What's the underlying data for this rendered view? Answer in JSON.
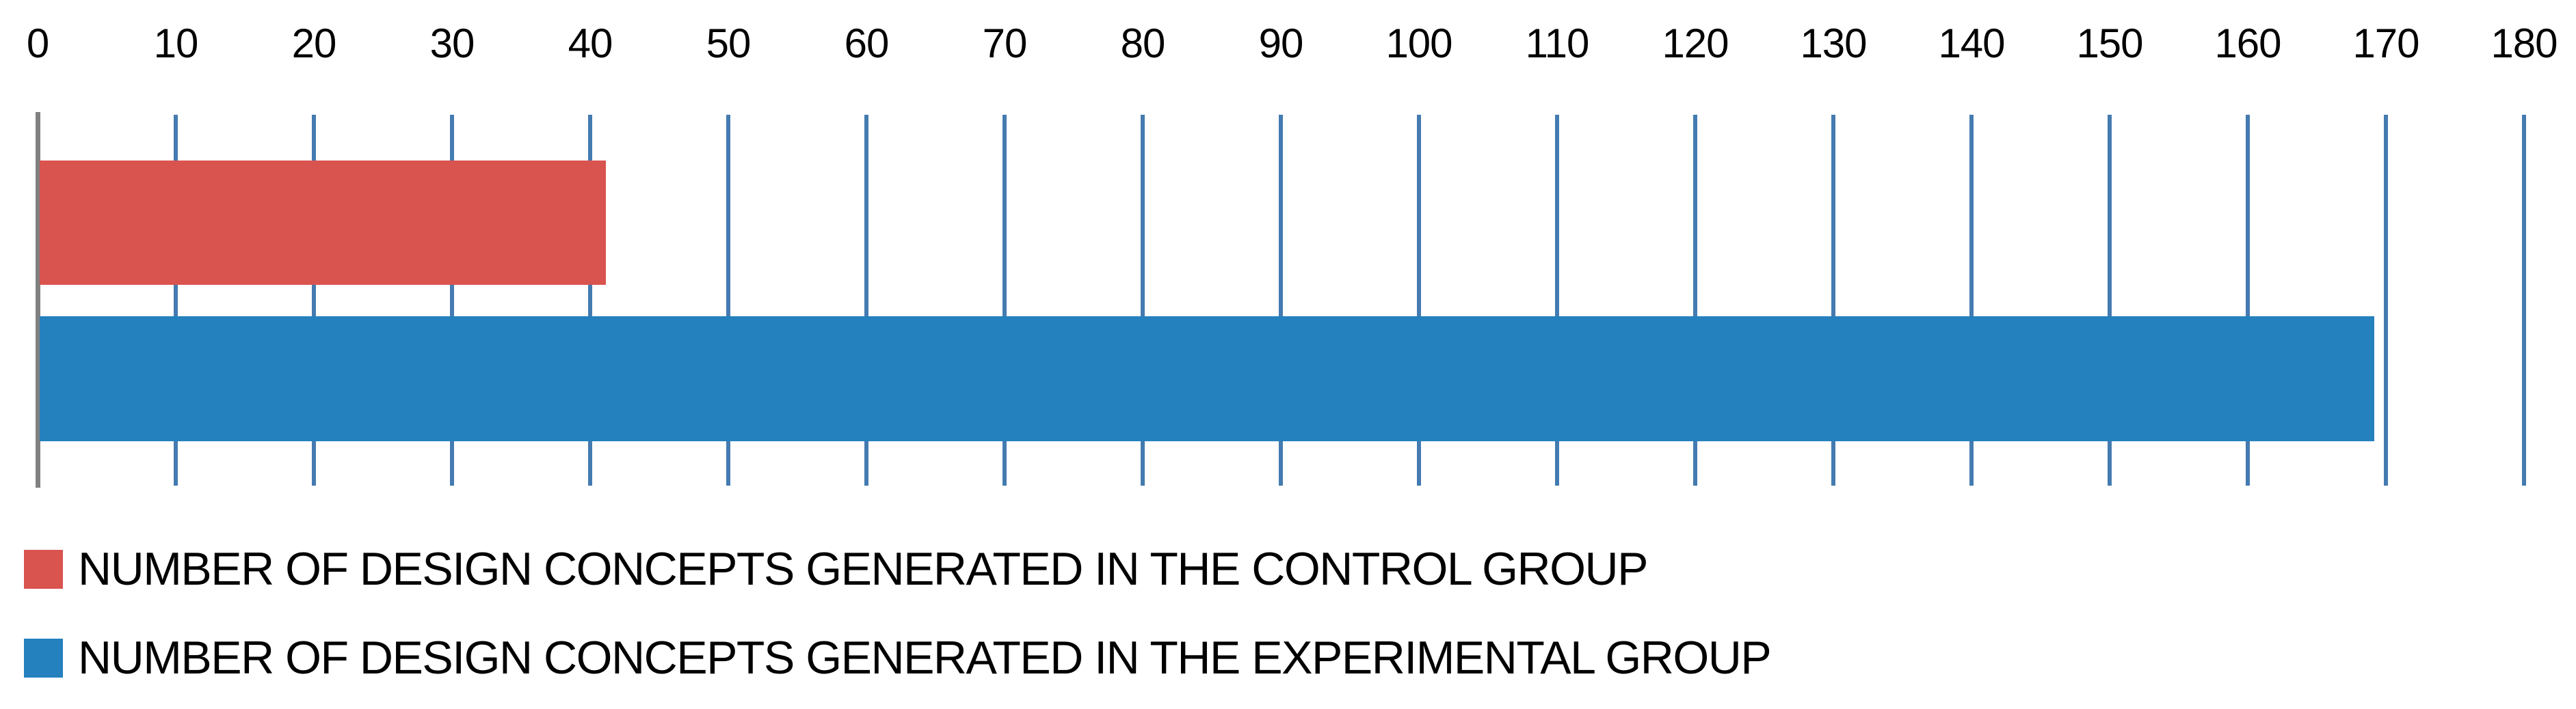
{
  "page": {
    "background": "#ffffff"
  },
  "chart_data": {
    "type": "bar",
    "orientation": "horizontal",
    "title": "",
    "xlabel": "",
    "ylabel": "",
    "xlim": [
      0,
      180
    ],
    "tick_step": 10,
    "x_tick_labels": [
      "0",
      "10",
      "20",
      "30",
      "40",
      "50",
      "60",
      "70",
      "80",
      "90",
      "100",
      "110",
      "120",
      "130",
      "140",
      "150",
      "160",
      "170",
      "180"
    ],
    "grid": true,
    "legend_position": "bottom-left",
    "series": [
      {
        "name": "NUMBER OF DESIGN CONCEPTS GENERATED IN THE CONTROL GROUP",
        "value": 41,
        "color": "#d9534f"
      },
      {
        "name": "NUMBER OF DESIGN CONCEPTS GENERATED IN THE EXPERIMENTAL GROUP",
        "value": 169,
        "color": "#2580be"
      }
    ],
    "colors": {
      "gridline": "#447bb0",
      "axis_line": "#808080",
      "tick_label": "#000000",
      "legend_text": "#000000"
    }
  }
}
